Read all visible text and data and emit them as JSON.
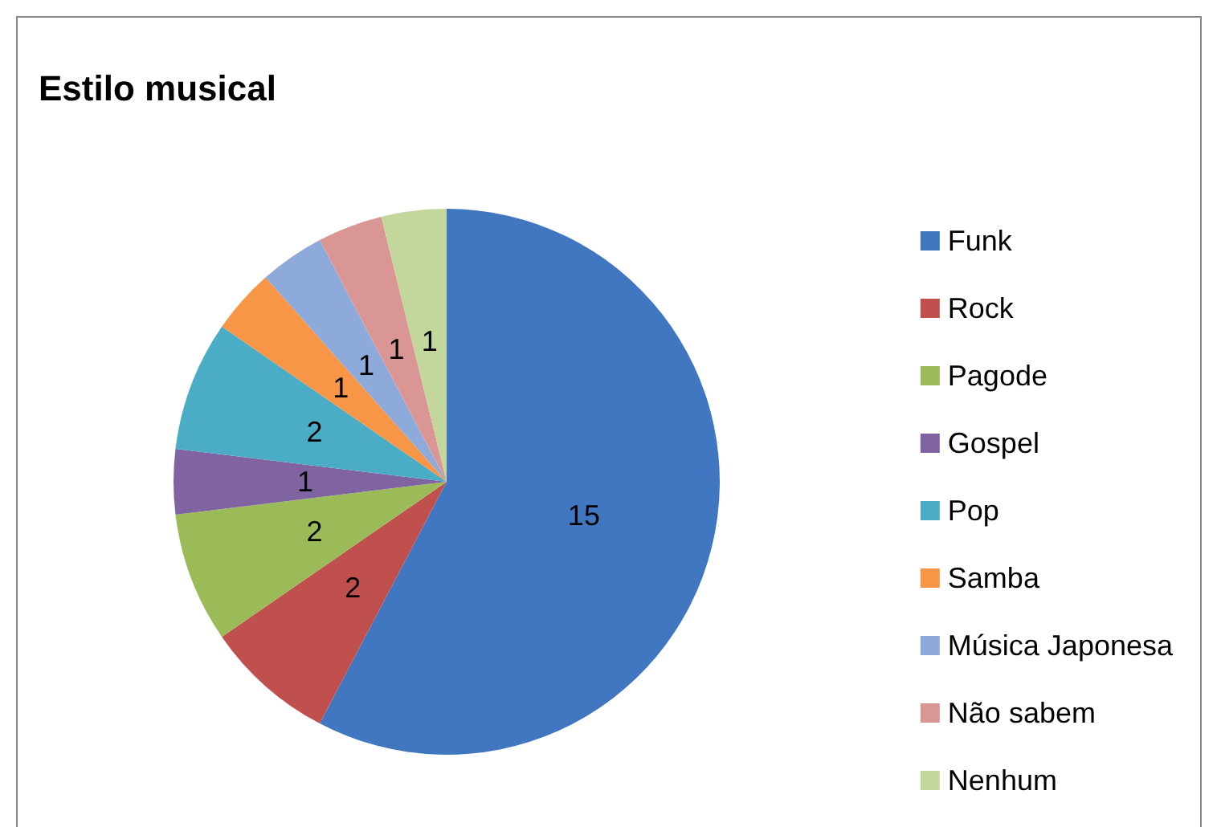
{
  "chart_data": {
    "type": "pie",
    "title": "Estilo musical",
    "categories": [
      "Funk",
      "Rock",
      "Pagode",
      "Gospel",
      "Pop",
      "Samba",
      "Música Japonesa",
      "Não sabem",
      "Nenhum"
    ],
    "values": [
      15,
      2,
      2,
      1,
      2,
      1,
      1,
      1,
      1
    ],
    "colors": [
      "#4077c0",
      "#c0504d",
      "#9bbb59",
      "#8064a2",
      "#4bacc6",
      "#f79646",
      "#8eaadb",
      "#da9694",
      "#c3d69b"
    ],
    "data_labels": true,
    "legend": "right"
  }
}
